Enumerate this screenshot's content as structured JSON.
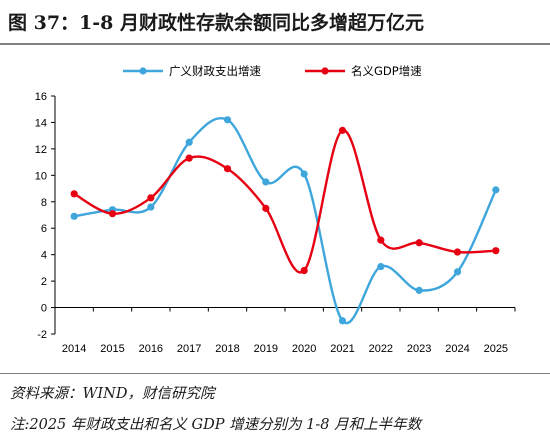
{
  "title": "图 37：1-8 月财政性存款余额同比多增超万亿元",
  "source_note": "资料来源：WIND，财信研究院",
  "remark_note": "注:2025 年财政支出和名义 GDP 增速分别为 1-8 月和上半年数",
  "colors": {
    "series1": "#3fa6dc",
    "series2": "#e60012",
    "axis": "#000000"
  },
  "chart_data": {
    "type": "line",
    "smooth": true,
    "x": [
      "2014",
      "2015",
      "2016",
      "2017",
      "2018",
      "2019",
      "2020",
      "2021",
      "2022",
      "2023",
      "2024",
      "2025"
    ],
    "ylim": [
      -2,
      16
    ],
    "yticks": [
      -2,
      0,
      2,
      4,
      6,
      8,
      10,
      12,
      14,
      16
    ],
    "grid": false,
    "legend_position": "top-center",
    "series": [
      {
        "name": "广义财政支出增速",
        "color": "#3fa6dc",
        "marker": "circle",
        "values": [
          6.9,
          7.4,
          7.6,
          12.5,
          14.2,
          9.5,
          10.1,
          -1.0,
          3.1,
          1.3,
          2.7,
          8.9
        ]
      },
      {
        "name": "名义GDP增速",
        "color": "#e60012",
        "marker": "circle",
        "values": [
          8.6,
          7.1,
          8.3,
          11.3,
          10.5,
          7.5,
          2.8,
          13.4,
          5.1,
          4.9,
          4.2,
          4.3
        ]
      }
    ]
  }
}
